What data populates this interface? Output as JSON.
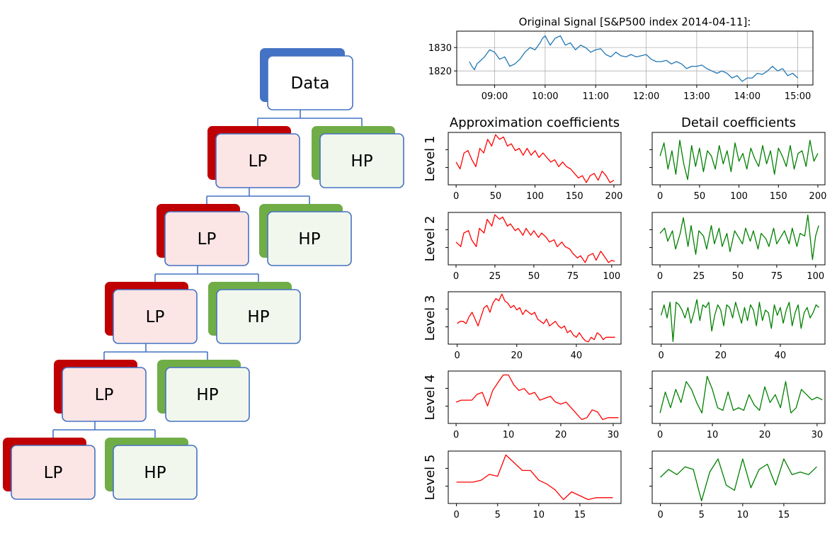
{
  "tree": {
    "root_label": "Data",
    "lp_label": "LP",
    "hp_label": "HP",
    "colors": {
      "root_shadow": "#4472c4",
      "lp_shadow": "#c00000",
      "hp_shadow": "#70ad47",
      "border": "#4472c4",
      "lp_fill": "#fbe5e5",
      "hp_fill": "#f1f7ec"
    }
  },
  "chart_data": [
    {
      "type": "line",
      "title": "Original Signal [S&P500 index 2014-04-11]:",
      "color": "#1f77b4",
      "x_tick_labels": [
        "09:00",
        "10:00",
        "11:00",
        "12:00",
        "13:00",
        "14:00",
        "15:00"
      ],
      "x_ticks": [
        9,
        10,
        11,
        12,
        13,
        14,
        15
      ],
      "xlim": [
        8.25,
        15.3
      ],
      "y_tick_labels": [
        "1820",
        "1830"
      ],
      "y_ticks": [
        1820,
        1830
      ],
      "ylim": [
        1814,
        1837
      ],
      "grid": true,
      "x": [
        8.5,
        8.55,
        8.6,
        8.65,
        8.7,
        8.8,
        8.9,
        9.0,
        9.1,
        9.2,
        9.3,
        9.4,
        9.5,
        9.6,
        9.7,
        9.8,
        9.9,
        9.95,
        10.0,
        10.05,
        10.1,
        10.2,
        10.3,
        10.4,
        10.5,
        10.6,
        10.7,
        10.8,
        10.9,
        11.0,
        11.1,
        11.2,
        11.3,
        11.4,
        11.5,
        11.6,
        11.7,
        11.8,
        11.9,
        12.0,
        12.1,
        12.2,
        12.3,
        12.4,
        12.5,
        12.6,
        12.7,
        12.8,
        12.9,
        13.0,
        13.1,
        13.2,
        13.3,
        13.4,
        13.5,
        13.6,
        13.7,
        13.8,
        13.9,
        14.0,
        14.1,
        14.2,
        14.3,
        14.4,
        14.5,
        14.6,
        14.7,
        14.8,
        14.9,
        15.0
      ],
      "y": [
        1824,
        1822,
        1820.5,
        1823,
        1824,
        1826,
        1829,
        1828,
        1825,
        1826,
        1822,
        1823,
        1825,
        1828,
        1830,
        1829,
        1832,
        1834,
        1835,
        1833,
        1831,
        1834,
        1835,
        1831,
        1832,
        1829,
        1831,
        1830,
        1828,
        1829,
        1829.5,
        1827,
        1826,
        1828,
        1826.5,
        1826,
        1827,
        1826,
        1826.5,
        1827,
        1825,
        1824,
        1824,
        1824.5,
        1823,
        1824,
        1823,
        1821,
        1822,
        1822,
        1822.5,
        1821,
        1820,
        1819,
        1820,
        1819,
        1817,
        1818,
        1815.5,
        1817,
        1817,
        1819,
        1818.5,
        1820,
        1822,
        1820,
        1821,
        1818,
        1819,
        1817
      ]
    },
    {
      "type": "line",
      "title": "Approximation coefficients",
      "ylabel": "Level 1",
      "color": "#ff0000",
      "x_tick_labels": [
        "0",
        "50",
        "100",
        "150",
        "200"
      ],
      "x_ticks": [
        0,
        50,
        100,
        150,
        200
      ],
      "xlim": [
        -10,
        209
      ],
      "ylim": [
        1814,
        1837
      ],
      "x": [
        0,
        5,
        10,
        15,
        20,
        25,
        30,
        35,
        40,
        45,
        50,
        55,
        60,
        65,
        70,
        75,
        80,
        85,
        90,
        95,
        100,
        105,
        110,
        115,
        120,
        125,
        130,
        135,
        140,
        145,
        150,
        155,
        160,
        165,
        170,
        175,
        180,
        185,
        190,
        195,
        200
      ],
      "y": [
        1824,
        1821,
        1828,
        1829,
        1825,
        1822,
        1830,
        1828,
        1834,
        1831,
        1836,
        1834,
        1835,
        1831,
        1832,
        1829,
        1830,
        1827,
        1830,
        1827,
        1829,
        1826,
        1828,
        1826,
        1824,
        1825,
        1822,
        1824,
        1822,
        1821,
        1819,
        1817,
        1818,
        1815,
        1818,
        1819,
        1816,
        1820,
        1818,
        1815,
        1816
      ]
    },
    {
      "type": "line",
      "title": "Detail coefficients",
      "color": "#008000",
      "x_tick_labels": [
        "0",
        "50",
        "100",
        "150",
        "200"
      ],
      "x_ticks": [
        0,
        50,
        100,
        150,
        200
      ],
      "xlim": [
        -10,
        209
      ],
      "ylim": [
        -1,
        1
      ],
      "x": [
        0,
        5,
        10,
        15,
        20,
        25,
        30,
        35,
        40,
        45,
        50,
        55,
        60,
        65,
        70,
        75,
        80,
        85,
        90,
        95,
        100,
        105,
        110,
        115,
        120,
        125,
        130,
        135,
        140,
        145,
        150,
        155,
        160,
        165,
        170,
        175,
        180,
        185,
        190,
        195,
        200
      ],
      "y": [
        0.1,
        0.6,
        -0.4,
        0.3,
        -0.6,
        0.7,
        -0.2,
        -0.8,
        0.5,
        -0.3,
        0.4,
        -0.5,
        0.3,
        0.1,
        -0.4,
        0.5,
        -0.2,
        0.3,
        -0.5,
        0.6,
        -0.1,
        0.2,
        -0.4,
        0.4,
        0.0,
        -0.3,
        0.5,
        -0.2,
        0.3,
        -0.6,
        0.4,
        0.1,
        -0.3,
        0.5,
        -0.4,
        0.2,
        0.3,
        -0.3,
        0.7,
        -0.1,
        0.2
      ]
    },
    {
      "type": "line",
      "ylabel": "Level 2",
      "color": "#ff0000",
      "x_tick_labels": [
        "0",
        "25",
        "50",
        "75",
        "100"
      ],
      "x_ticks": [
        0,
        25,
        50,
        75,
        100
      ],
      "xlim": [
        -5,
        106
      ],
      "ylim": [
        1814,
        1837
      ],
      "x": [
        0,
        3,
        5,
        8,
        10,
        13,
        15,
        18,
        20,
        23,
        25,
        28,
        30,
        33,
        35,
        38,
        40,
        43,
        45,
        48,
        50,
        53,
        55,
        58,
        60,
        63,
        65,
        68,
        70,
        73,
        75,
        78,
        80,
        83,
        85,
        88,
        90,
        93,
        95,
        98,
        100,
        102
      ],
      "y": [
        1824,
        1822,
        1828,
        1829,
        1825,
        1822,
        1830,
        1828,
        1834,
        1831,
        1836,
        1834,
        1835,
        1831,
        1832,
        1829,
        1830,
        1827,
        1830,
        1827,
        1829,
        1826,
        1828,
        1826,
        1824,
        1825,
        1822,
        1824,
        1822,
        1821,
        1819,
        1817,
        1818,
        1815,
        1818,
        1819,
        1816,
        1820,
        1818,
        1815,
        1816,
        1815.5
      ]
    },
    {
      "type": "line",
      "color": "#008000",
      "x_tick_labels": [
        "0",
        "25",
        "50",
        "75",
        "100"
      ],
      "x_ticks": [
        0,
        25,
        50,
        75,
        100
      ],
      "xlim": [
        -5,
        106
      ],
      "ylim": [
        -1,
        1
      ],
      "x": [
        0,
        3,
        5,
        8,
        10,
        13,
        15,
        18,
        20,
        23,
        25,
        28,
        30,
        33,
        35,
        38,
        40,
        43,
        45,
        48,
        50,
        53,
        55,
        58,
        60,
        63,
        65,
        68,
        70,
        73,
        75,
        78,
        80,
        83,
        85,
        88,
        90,
        93,
        95,
        98,
        100,
        102
      ],
      "y": [
        0.2,
        0.4,
        -0.1,
        0.3,
        -0.4,
        0.2,
        0.8,
        -0.3,
        0.5,
        -0.6,
        0.3,
        0.1,
        -0.4,
        0.5,
        -0.2,
        0.4,
        -0.3,
        0.2,
        -0.5,
        0.3,
        0.1,
        -0.2,
        0.4,
        -0.1,
        0.3,
        -0.4,
        0.2,
        0.0,
        -0.3,
        0.4,
        -0.2,
        0.1,
        0.3,
        -0.2,
        0.4,
        -0.3,
        0.2,
        0.1,
        0.9,
        -0.8,
        0.1,
        0.5
      ]
    },
    {
      "type": "line",
      "ylabel": "Level 3",
      "color": "#ff0000",
      "x_tick_labels": [
        "0",
        "20",
        "40"
      ],
      "x_ticks": [
        0,
        20,
        40
      ],
      "xlim": [
        -3,
        55
      ],
      "ylim": [
        1814,
        1837
      ],
      "x": [
        0,
        1,
        2,
        3,
        4,
        5,
        6,
        7,
        8,
        9,
        10,
        11,
        12,
        13,
        14,
        15,
        16,
        17,
        18,
        19,
        20,
        21,
        22,
        23,
        24,
        25,
        26,
        27,
        28,
        29,
        30,
        31,
        32,
        33,
        34,
        35,
        36,
        37,
        38,
        39,
        40,
        41,
        42,
        43,
        44,
        45,
        46,
        47,
        48,
        49,
        50,
        51,
        52,
        53
      ],
      "y": [
        1823,
        1824,
        1824,
        1823,
        1826,
        1828,
        1825,
        1822,
        1826,
        1830,
        1831,
        1828,
        1832,
        1834,
        1833,
        1836,
        1833,
        1832,
        1830,
        1831,
        1829,
        1830,
        1827,
        1829,
        1828,
        1827,
        1828,
        1825,
        1824,
        1823,
        1825,
        1822,
        1823,
        1824,
        1822,
        1821,
        1822,
        1819,
        1820,
        1818,
        1817,
        1819,
        1817,
        1815.5,
        1815,
        1817,
        1816,
        1819,
        1818,
        1816,
        1817,
        1817,
        1817,
        1817
      ]
    },
    {
      "type": "line",
      "color": "#008000",
      "x_tick_labels": [
        "0",
        "20",
        "40"
      ],
      "x_ticks": [
        0,
        20,
        40
      ],
      "xlim": [
        -3,
        55
      ],
      "ylim": [
        -1,
        1
      ],
      "x": [
        0,
        1,
        2,
        3,
        4,
        5,
        6,
        7,
        8,
        9,
        10,
        11,
        12,
        13,
        14,
        15,
        16,
        17,
        18,
        19,
        20,
        21,
        22,
        23,
        24,
        25,
        26,
        27,
        28,
        29,
        30,
        31,
        32,
        33,
        34,
        35,
        36,
        37,
        38,
        39,
        40,
        41,
        42,
        43,
        44,
        45,
        46,
        47,
        48,
        49,
        50,
        51,
        52,
        53
      ],
      "y": [
        0.1,
        0.5,
        0.0,
        0.6,
        -0.9,
        0.6,
        0.5,
        0.3,
        0.0,
        0.4,
        -0.2,
        0.2,
        0.7,
        -0.1,
        0.5,
        0.4,
        0.6,
        -0.5,
        0.1,
        0.5,
        0.3,
        -0.3,
        0.5,
        0.4,
        0.0,
        0.6,
        0.2,
        -0.2,
        0.4,
        -0.1,
        0.5,
        0.3,
        -0.3,
        0.6,
        -0.1,
        0.3,
        0.2,
        -0.4,
        0.5,
        0.1,
        0.4,
        -0.2,
        0.3,
        0.6,
        -0.3,
        0.2,
        0.5,
        -0.4,
        0.2,
        0.4,
        0.0,
        0.2,
        0.5,
        0.4
      ]
    },
    {
      "type": "line",
      "ylabel": "Level 4",
      "color": "#ff0000",
      "x_tick_labels": [
        "0",
        "10",
        "20",
        "30"
      ],
      "x_ticks": [
        0,
        10,
        20,
        30
      ],
      "xlim": [
        -1.5,
        31.5
      ],
      "ylim": [
        1813,
        1840
      ],
      "x": [
        0,
        1,
        2,
        3,
        4,
        5,
        6,
        7,
        8,
        9,
        10,
        11,
        12,
        13,
        14,
        15,
        16,
        17,
        18,
        19,
        20,
        21,
        22,
        23,
        24,
        25,
        26,
        27,
        28,
        29,
        30,
        31
      ],
      "y": [
        1824,
        1825,
        1825,
        1825,
        1828,
        1829,
        1822,
        1830,
        1834,
        1838,
        1838,
        1833,
        1830,
        1831,
        1828,
        1829,
        1825,
        1826,
        1827,
        1824,
        1823,
        1824,
        1821,
        1818,
        1815,
        1816,
        1820,
        1819,
        1815,
        1816,
        1816,
        1816
      ]
    },
    {
      "type": "line",
      "color": "#008000",
      "x_tick_labels": [
        "0",
        "10",
        "20",
        "30"
      ],
      "x_ticks": [
        0,
        10,
        20,
        30
      ],
      "xlim": [
        -1.5,
        31.5
      ],
      "ylim": [
        -1,
        1
      ],
      "x": [
        0,
        1,
        2,
        3,
        4,
        5,
        6,
        7,
        8,
        9,
        10,
        11,
        12,
        13,
        14,
        15,
        16,
        17,
        18,
        19,
        20,
        21,
        22,
        23,
        24,
        25,
        26,
        27,
        28,
        29,
        30,
        31
      ],
      "y": [
        -0.6,
        0.2,
        -0.4,
        0.3,
        -0.2,
        0.6,
        0.3,
        -0.2,
        -0.6,
        0.8,
        0.3,
        -0.4,
        -0.5,
        0.2,
        -0.5,
        -0.4,
        -0.5,
        0.1,
        -0.3,
        -0.5,
        0.4,
        -0.2,
        0.1,
        -0.4,
        0.6,
        -0.6,
        -0.4,
        0.3,
        0.1,
        -0.1,
        0.0,
        -0.1
      ]
    },
    {
      "type": "line",
      "ylabel": "Level 5",
      "color": "#ff0000",
      "x_tick_labels": [
        "0",
        "5",
        "10",
        "15"
      ],
      "x_ticks": [
        0,
        5,
        10,
        15
      ],
      "xlim": [
        -1,
        20
      ],
      "ylim": [
        1813,
        1840
      ],
      "x": [
        0,
        1,
        2,
        3,
        4,
        5,
        6,
        7,
        8,
        9,
        10,
        11,
        12,
        13,
        14,
        15,
        16,
        17,
        18,
        19
      ],
      "y": [
        1824,
        1824,
        1824,
        1825,
        1828,
        1827,
        1838,
        1834,
        1830,
        1830,
        1825,
        1823,
        1820,
        1815,
        1819,
        1817,
        1815,
        1816,
        1816,
        1816
      ]
    },
    {
      "type": "line",
      "color": "#008000",
      "x_tick_labels": [
        "0",
        "5",
        "10",
        "15"
      ],
      "x_ticks": [
        0,
        5,
        10,
        15
      ],
      "xlim": [
        -1,
        20
      ],
      "ylim": [
        -1,
        1
      ],
      "x": [
        0,
        1,
        2,
        3,
        4,
        5,
        6,
        7,
        8,
        9,
        10,
        11,
        12,
        13,
        14,
        15,
        16,
        17,
        18,
        19
      ],
      "y": [
        0.0,
        0.3,
        0.1,
        0.4,
        0.3,
        -0.9,
        0.2,
        0.7,
        -0.3,
        -0.5,
        0.7,
        -0.4,
        0.3,
        0.5,
        -0.3,
        0.7,
        0.1,
        0.2,
        0.1,
        0.4
      ]
    }
  ]
}
